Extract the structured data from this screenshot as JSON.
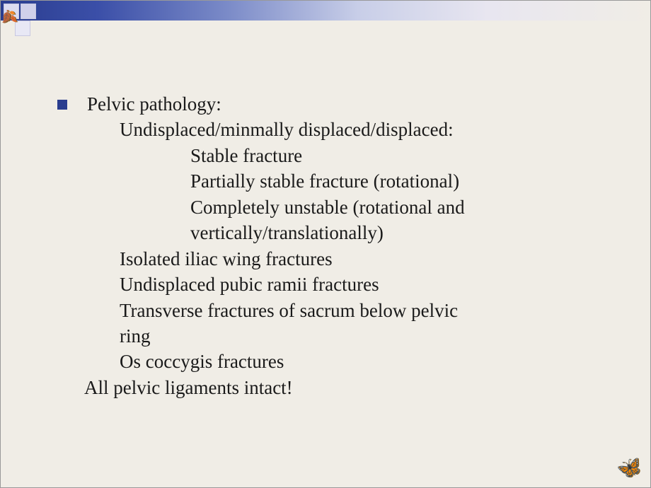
{
  "slide": {
    "background_color": "#f0ede6",
    "bar_gradient": [
      "#2a3d8f",
      "#3b4fa8",
      "#7b8bc8",
      "#c8cee8",
      "#e8e6f0",
      "#f0ede6"
    ],
    "bullet_color": "#2a3d8f",
    "font_family": "Times New Roman",
    "text_color": "#1a1a1a",
    "font_size_pt": 20
  },
  "content": {
    "heading": "Pelvic pathology:",
    "sub1": "Undisplaced/minmally displaced/displaced:",
    "type1": "Stable fracture",
    "type2": "Partially stable fracture (rotational)",
    "type3a": "Completely unstable (rotational and",
    "type3b": "vertically/translationally)",
    "iso1": "Isolated iliac wing fractures",
    "iso2": "Undisplaced pubic ramii fractures",
    "iso3a": "Transverse fractures of sacrum below pelvic",
    "iso3b": "ring",
    "iso4": "Os coccygis fractures",
    "conclusion": "All pelvic ligaments intact!"
  },
  "decorations": {
    "corner_icon": "🍂",
    "bottom_icon": "🦋"
  }
}
